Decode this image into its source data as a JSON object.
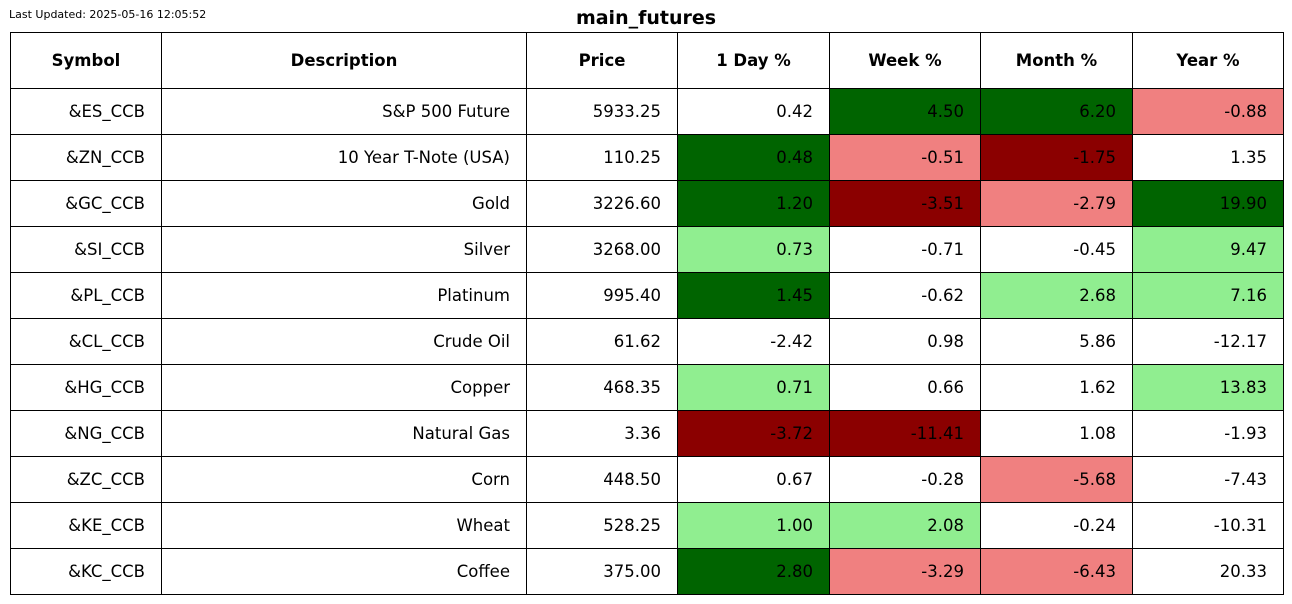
{
  "last_updated": "Last Updated: 2025-05-16 12:05:52",
  "title": "main_futures",
  "colors": {
    "strong_up": "#006400",
    "mild_up": "#90ee90",
    "mild_down": "#f08080",
    "strong_down": "#8b0000",
    "neutral": "#ffffff"
  },
  "chart_data": {
    "type": "table",
    "title": "main_futures",
    "columns": [
      "Symbol",
      "Description",
      "Price",
      "1 Day %",
      "Week %",
      "Month %",
      "Year %"
    ],
    "rows": [
      {
        "cells": [
          "&ES_CCB",
          "S&P 500 Future",
          "5933.25",
          "0.42",
          "4.50",
          "6.20",
          "-0.88"
        ],
        "shades": [
          "neutral",
          "strong_up",
          "strong_up",
          "mild_down"
        ]
      },
      {
        "cells": [
          "&ZN_CCB",
          "10 Year T-Note (USA)",
          "110.25",
          "0.48",
          "-0.51",
          "-1.75",
          "1.35"
        ],
        "shades": [
          "strong_up",
          "mild_down",
          "strong_down",
          "neutral"
        ]
      },
      {
        "cells": [
          "&GC_CCB",
          "Gold",
          "3226.60",
          "1.20",
          "-3.51",
          "-2.79",
          "19.90"
        ],
        "shades": [
          "strong_up",
          "strong_down",
          "mild_down",
          "strong_up"
        ]
      },
      {
        "cells": [
          "&SI_CCB",
          "Silver",
          "3268.00",
          "0.73",
          "-0.71",
          "-0.45",
          "9.47"
        ],
        "shades": [
          "mild_up",
          "neutral",
          "neutral",
          "mild_up"
        ]
      },
      {
        "cells": [
          "&PL_CCB",
          "Platinum",
          "995.40",
          "1.45",
          "-0.62",
          "2.68",
          "7.16"
        ],
        "shades": [
          "strong_up",
          "neutral",
          "mild_up",
          "mild_up"
        ]
      },
      {
        "cells": [
          "&CL_CCB",
          "Crude Oil",
          "61.62",
          "-2.42",
          "0.98",
          "5.86",
          "-12.17"
        ],
        "shades": [
          "neutral",
          "neutral",
          "neutral",
          "neutral"
        ]
      },
      {
        "cells": [
          "&HG_CCB",
          "Copper",
          "468.35",
          "0.71",
          "0.66",
          "1.62",
          "13.83"
        ],
        "shades": [
          "mild_up",
          "neutral",
          "neutral",
          "mild_up"
        ]
      },
      {
        "cells": [
          "&NG_CCB",
          "Natural Gas",
          "3.36",
          "-3.72",
          "-11.41",
          "1.08",
          "-1.93"
        ],
        "shades": [
          "strong_down",
          "strong_down",
          "neutral",
          "neutral"
        ]
      },
      {
        "cells": [
          "&ZC_CCB",
          "Corn",
          "448.50",
          "0.67",
          "-0.28",
          "-5.68",
          "-7.43"
        ],
        "shades": [
          "neutral",
          "neutral",
          "mild_down",
          "neutral"
        ]
      },
      {
        "cells": [
          "&KE_CCB",
          "Wheat",
          "528.25",
          "1.00",
          "2.08",
          "-0.24",
          "-10.31"
        ],
        "shades": [
          "mild_up",
          "mild_up",
          "neutral",
          "neutral"
        ]
      },
      {
        "cells": [
          "&KC_CCB",
          "Coffee",
          "375.00",
          "2.80",
          "-3.29",
          "-6.43",
          "20.33"
        ],
        "shades": [
          "strong_up",
          "mild_down",
          "mild_down",
          "neutral"
        ]
      }
    ]
  }
}
